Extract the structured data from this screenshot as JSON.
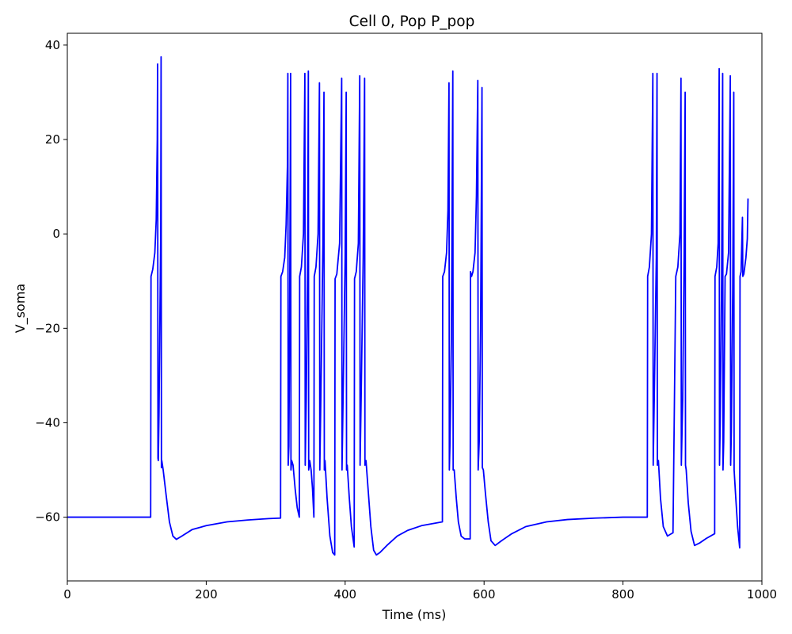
{
  "chart_data": {
    "type": "line",
    "title": "Cell 0, Pop P_pop",
    "xlabel": "Time (ms)",
    "ylabel": "V_soma",
    "xlim": [
      0,
      1000
    ],
    "ylim": [
      -73.5,
      42.5
    ],
    "x_ticks": [
      0,
      200,
      400,
      600,
      800,
      1000
    ],
    "y_ticks": [
      -60,
      -40,
      -20,
      0,
      20,
      40
    ],
    "grid": false,
    "legend": "none",
    "series": [
      {
        "color": "#0000ff",
        "points": [
          [
            0,
            -60
          ],
          [
            120,
            -60
          ],
          [
            120.5,
            -9
          ],
          [
            123,
            -7.5
          ],
          [
            126,
            -4
          ],
          [
            128,
            3
          ],
          [
            129.5,
            20
          ],
          [
            130,
            36
          ],
          [
            130.5,
            -47.5
          ],
          [
            131,
            -48
          ],
          [
            132,
            -38
          ],
          [
            133,
            -22
          ],
          [
            134.5,
            0
          ],
          [
            135,
            37.5
          ],
          [
            135.5,
            -49.5
          ],
          [
            136,
            -48
          ],
          [
            138,
            -50
          ],
          [
            142,
            -55
          ],
          [
            147,
            -61
          ],
          [
            152,
            -64
          ],
          [
            157,
            -64.7
          ],
          [
            165,
            -64
          ],
          [
            180,
            -62.6
          ],
          [
            200,
            -61.8
          ],
          [
            230,
            -61
          ],
          [
            260,
            -60.6
          ],
          [
            290,
            -60.3
          ],
          [
            307,
            -60.2
          ],
          [
            307.5,
            -9
          ],
          [
            310,
            -8
          ],
          [
            313,
            -5
          ],
          [
            315,
            2
          ],
          [
            317,
            15
          ],
          [
            317.5,
            34
          ],
          [
            318,
            -49
          ],
          [
            319,
            -45
          ],
          [
            320,
            -20
          ],
          [
            321.5,
            34
          ],
          [
            322,
            -50
          ],
          [
            323,
            -48
          ],
          [
            325,
            -49
          ],
          [
            328,
            -54
          ],
          [
            331,
            -58
          ],
          [
            334,
            -60
          ],
          [
            334.5,
            -9
          ],
          [
            337,
            -7
          ],
          [
            340,
            0
          ],
          [
            342,
            34
          ],
          [
            342.5,
            -49
          ],
          [
            344,
            -35
          ],
          [
            346,
            -5
          ],
          [
            347,
            34.5
          ],
          [
            347.5,
            -50
          ],
          [
            349,
            -48
          ],
          [
            351,
            -50
          ],
          [
            353,
            -54
          ],
          [
            355,
            -60
          ],
          [
            355.5,
            -9
          ],
          [
            358,
            -7
          ],
          [
            361,
            0
          ],
          [
            363,
            32
          ],
          [
            363.5,
            -50
          ],
          [
            365,
            -35
          ],
          [
            368,
            -2
          ],
          [
            369.5,
            30
          ],
          [
            370,
            -50
          ],
          [
            371,
            -48
          ],
          [
            374,
            -56
          ],
          [
            378,
            -64
          ],
          [
            382,
            -67.5
          ],
          [
            385,
            -68
          ],
          [
            385.5,
            -9.5
          ],
          [
            388,
            -8.5
          ],
          [
            392,
            -2
          ],
          [
            395,
            33
          ],
          [
            395.5,
            -50
          ],
          [
            397,
            -35
          ],
          [
            400,
            -5
          ],
          [
            401.5,
            30
          ],
          [
            402,
            -50
          ],
          [
            403,
            -49
          ],
          [
            406,
            -56
          ],
          [
            409,
            -62
          ],
          [
            413,
            -66.3
          ],
          [
            413.5,
            -9.5
          ],
          [
            416,
            -8
          ],
          [
            419,
            -2
          ],
          [
            421,
            33.5
          ],
          [
            421.5,
            -49
          ],
          [
            423,
            -35
          ],
          [
            426,
            -5
          ],
          [
            428,
            33
          ],
          [
            428.5,
            -49
          ],
          [
            430,
            -48
          ],
          [
            433,
            -54
          ],
          [
            437,
            -62
          ],
          [
            441,
            -67
          ],
          [
            445,
            -68
          ],
          [
            450,
            -67.5
          ],
          [
            460,
            -66
          ],
          [
            475,
            -64
          ],
          [
            490,
            -62.8
          ],
          [
            510,
            -61.8
          ],
          [
            540,
            -61
          ],
          [
            540.5,
            -9
          ],
          [
            543,
            -8
          ],
          [
            546,
            -4
          ],
          [
            548,
            5
          ],
          [
            549.5,
            32
          ],
          [
            550,
            -50
          ],
          [
            551,
            -44
          ],
          [
            553,
            -22
          ],
          [
            555,
            34.5
          ],
          [
            555.5,
            -50
          ],
          [
            557,
            -50
          ],
          [
            560,
            -56
          ],
          [
            563,
            -61
          ],
          [
            567,
            -64
          ],
          [
            572,
            -64.6
          ],
          [
            580,
            -64.6
          ],
          [
            580.5,
            -8
          ],
          [
            582,
            -9
          ],
          [
            584,
            -8
          ],
          [
            587,
            -4
          ],
          [
            589,
            8
          ],
          [
            591,
            32.5
          ],
          [
            591.5,
            -50
          ],
          [
            593,
            -44
          ],
          [
            595,
            -20
          ],
          [
            597,
            31
          ],
          [
            597.5,
            -49.5
          ],
          [
            599,
            -50
          ],
          [
            602,
            -55
          ],
          [
            606,
            -61
          ],
          [
            610,
            -65
          ],
          [
            616,
            -66
          ],
          [
            625,
            -65
          ],
          [
            640,
            -63.5
          ],
          [
            660,
            -62
          ],
          [
            690,
            -61
          ],
          [
            720,
            -60.5
          ],
          [
            760,
            -60.2
          ],
          [
            800,
            -60
          ],
          [
            835,
            -60
          ],
          [
            835.5,
            -9
          ],
          [
            838,
            -7
          ],
          [
            841,
            0
          ],
          [
            843,
            34
          ],
          [
            843.5,
            -49
          ],
          [
            845,
            -35
          ],
          [
            848,
            -5
          ],
          [
            849,
            34
          ],
          [
            849.5,
            -49
          ],
          [
            851,
            -48
          ],
          [
            854,
            -56
          ],
          [
            858,
            -62
          ],
          [
            864,
            -64
          ],
          [
            872,
            -63.3
          ],
          [
            876,
            -9
          ],
          [
            879,
            -7
          ],
          [
            882,
            0
          ],
          [
            883.5,
            33
          ],
          [
            884,
            -49
          ],
          [
            886,
            -35
          ],
          [
            888,
            -5
          ],
          [
            889.5,
            30
          ],
          [
            890,
            -49
          ],
          [
            891,
            -50
          ],
          [
            894,
            -57
          ],
          [
            898,
            -63
          ],
          [
            903,
            -66
          ],
          [
            910,
            -65.5
          ],
          [
            920,
            -64.5
          ],
          [
            932,
            -63.5
          ],
          [
            932.5,
            -9
          ],
          [
            935,
            -7
          ],
          [
            937,
            -2
          ],
          [
            938.5,
            35
          ],
          [
            939,
            -49
          ],
          [
            940,
            -40
          ],
          [
            942,
            -10
          ],
          [
            943.5,
            34
          ],
          [
            944,
            -50
          ],
          [
            945,
            -44
          ],
          [
            947,
            -9
          ],
          [
            949,
            -8.5
          ],
          [
            952,
            -4
          ],
          [
            954.5,
            33.5
          ],
          [
            955,
            -49
          ],
          [
            956,
            -42
          ],
          [
            958,
            -12
          ],
          [
            959.5,
            30
          ],
          [
            960,
            -50
          ],
          [
            962,
            -55
          ],
          [
            965,
            -62
          ],
          [
            968,
            -66.5
          ],
          [
            968.5,
            -9
          ],
          [
            970,
            -8
          ],
          [
            972,
            3.5
          ],
          [
            972.5,
            -9
          ],
          [
            974,
            -8.5
          ],
          [
            977,
            -5
          ],
          [
            979,
            -1
          ],
          [
            980,
            7.5
          ]
        ]
      }
    ]
  }
}
